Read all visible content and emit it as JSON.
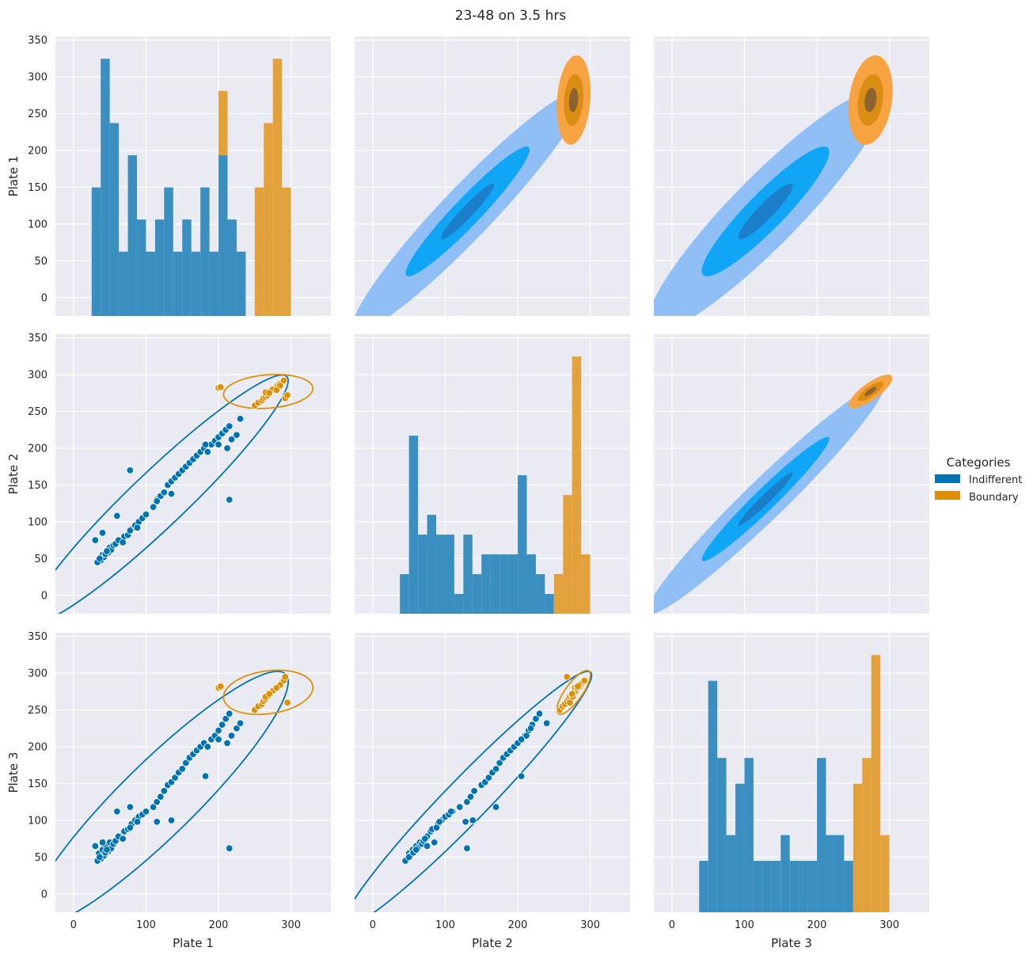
{
  "figure": {
    "title": "23-48 on 3.5 hrs"
  },
  "colors": {
    "panel_bg": "#eaeaf2",
    "grid": "#ffffff",
    "indifferent": "#0173b2",
    "indifferent_hist": "#3a8fc0",
    "indifferent_kde_light": "#8fbff5",
    "indifferent_kde_mid": "#10a6f5",
    "indifferent_kde_dark": "#1a7fc8",
    "boundary": "#de8f05",
    "boundary_hist": "#e2a13a",
    "boundary_kde_light": "#f7a342",
    "boundary_kde_mid": "#d98d12",
    "boundary_kde_dark": "#8c6230"
  },
  "legend": {
    "title": "Categories",
    "items": [
      {
        "label": "Indifferent",
        "color": "#0173b2"
      },
      {
        "label": "Boundary",
        "color": "#de8f05"
      }
    ],
    "placement": "right-center"
  },
  "chart_data": {
    "type": "pairgrid",
    "variables": [
      "Plate 1",
      "Plate 2",
      "Plate 3"
    ],
    "xlim": [
      -25,
      355
    ],
    "ylim": [
      -25,
      355
    ],
    "xticks": [
      0,
      100,
      200,
      300
    ],
    "yticks": [
      0,
      50,
      100,
      150,
      200,
      250,
      300,
      350
    ],
    "grid": true,
    "upper": "kde-filled",
    "diag": "histogram-stacked",
    "lower": "scatter + kde-contour",
    "series": [
      {
        "name": "Indifferent",
        "points": {
          "Plate 1": [
            35,
            40,
            45,
            50,
            38,
            42,
            48,
            52,
            55,
            33,
            36,
            44,
            46,
            58,
            62,
            70,
            75,
            80,
            85,
            90,
            68,
            78,
            88,
            95,
            100,
            110,
            115,
            120,
            125,
            130,
            135,
            140,
            145,
            150,
            155,
            160,
            165,
            170,
            175,
            180,
            190,
            195,
            200,
            205,
            210,
            215,
            185,
            212,
            218,
            225,
            230,
            30,
            40,
            60,
            78,
            115,
            135,
            182,
            215,
            200
          ],
          "Plate 2": [
            50,
            55,
            60,
            65,
            48,
            52,
            58,
            62,
            68,
            45,
            50,
            56,
            60,
            70,
            75,
            80,
            82,
            90,
            95,
            100,
            72,
            88,
            92,
            105,
            110,
            120,
            130,
            135,
            140,
            150,
            155,
            160,
            165,
            170,
            175,
            180,
            185,
            190,
            195,
            200,
            205,
            210,
            215,
            220,
            225,
            230,
            195,
            200,
            212,
            218,
            240,
            75,
            85,
            108,
            170,
            128,
            138,
            205,
            130,
            205
          ],
          "Plate 3": [
            55,
            60,
            65,
            70,
            48,
            52,
            58,
            62,
            68,
            45,
            50,
            56,
            60,
            72,
            78,
            85,
            88,
            95,
            100,
            105,
            75,
            90,
            98,
            108,
            112,
            118,
            125,
            132,
            140,
            148,
            152,
            158,
            165,
            170,
            178,
            185,
            190,
            195,
            200,
            205,
            210,
            215,
            222,
            230,
            238,
            245,
            200,
            205,
            215,
            225,
            232,
            65,
            70,
            112,
            118,
            98,
            100,
            160,
            62,
            210
          ]
        }
      },
      {
        "name": "Boundary",
        "points": {
          "Plate 1": [
            250,
            255,
            260,
            262,
            265,
            268,
            270,
            272,
            275,
            278,
            280,
            282,
            285,
            288,
            290,
            292,
            295,
            265,
            275,
            285,
            270,
            280,
            200,
            203
          ],
          "Plate 2": [
            258,
            262,
            265,
            268,
            270,
            272,
            275,
            278,
            280,
            282,
            284,
            286,
            288,
            290,
            292,
            268,
            272,
            276,
            280,
            285,
            275,
            279,
            282,
            283
          ],
          "Plate 3": [
            250,
            255,
            258,
            262,
            265,
            268,
            270,
            272,
            275,
            278,
            280,
            282,
            285,
            288,
            290,
            295,
            260,
            268,
            276,
            284,
            272,
            280,
            280,
            282
          ]
        }
      }
    ]
  }
}
